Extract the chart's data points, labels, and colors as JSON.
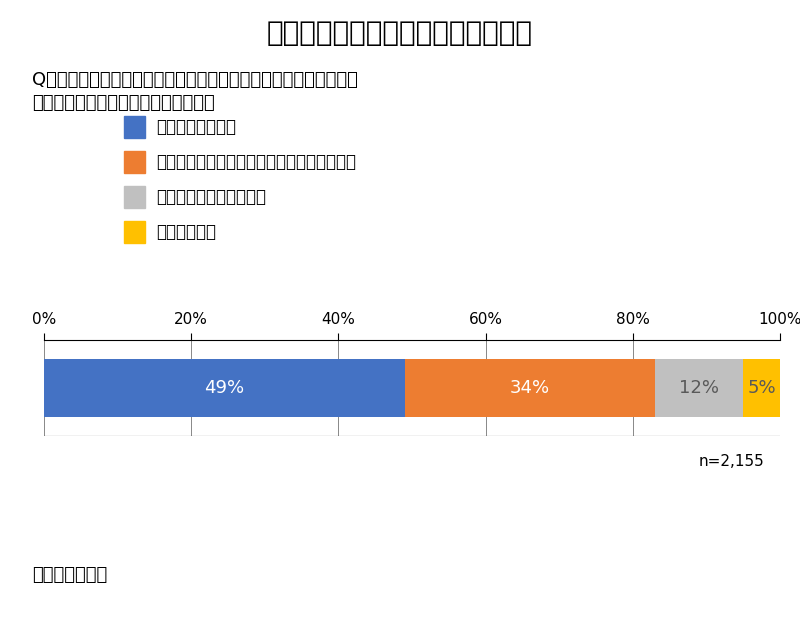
{
  "title": "図６　未知の感染症に対する恐怖心",
  "question_line1": "Q．新型コロナウイルスの影響を経験して、未知の感染症に対して",
  "question_line2": "　　現在どの程度恐怖を感じているか",
  "legend_labels": [
    "今でも非常に怖い",
    "一時的に怖く感じたが今はそこまで怖くない",
    "最初からあまり怖くない",
    "全く怖くない"
  ],
  "values": [
    49,
    34,
    12,
    5
  ],
  "bar_colors": [
    "#4472C4",
    "#ED7D31",
    "#C0C0C0",
    "#FFC000"
  ],
  "bar_labels": [
    "49%",
    "34%",
    "12%",
    "5%"
  ],
  "note": "n=2,155",
  "source": "出所：著者作成",
  "bg_color": "#FFFFFF",
  "text_color": "#000000",
  "bar_label_color_light": "#FFFFFF",
  "bar_label_color_dark": "#595959",
  "title_fontsize": 20,
  "question_fontsize": 13,
  "legend_fontsize": 12,
  "tick_fontsize": 11,
  "bar_label_fontsize": 13,
  "note_fontsize": 11,
  "source_fontsize": 13
}
